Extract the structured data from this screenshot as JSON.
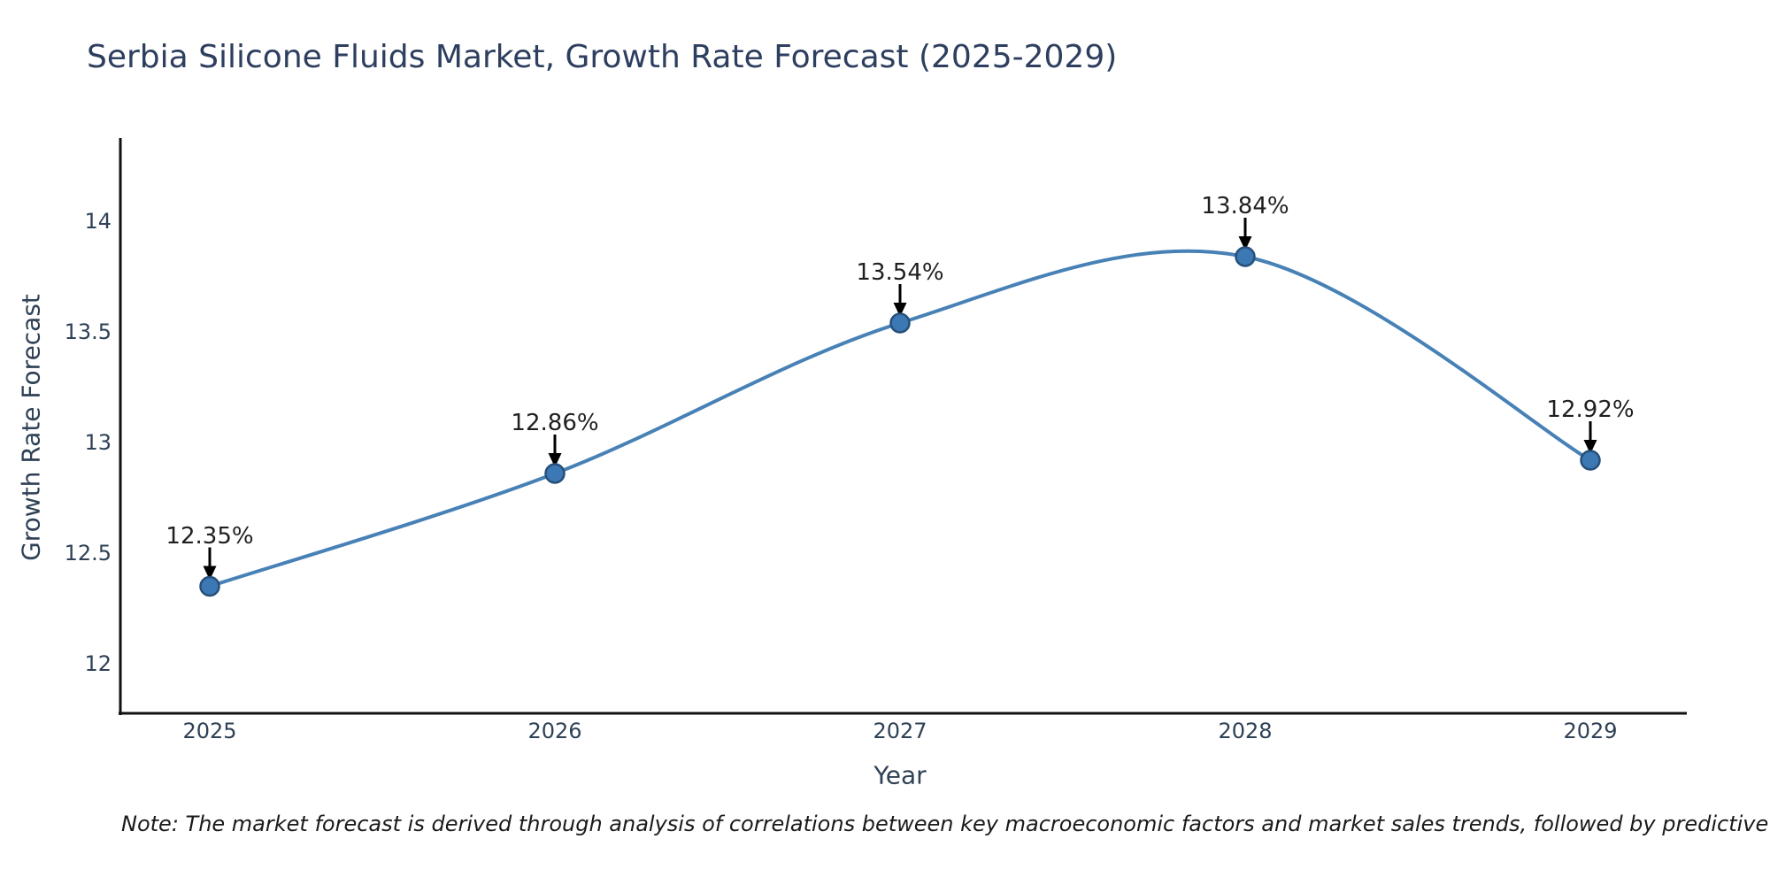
{
  "title": "Serbia Silicone Fluids Market, Growth Rate Forecast (2025-2029)",
  "note": "Note: The market forecast is derived through analysis of correlations between key macroeconomic factors and market sales trends, followed by predictive modeling to project future sal",
  "colors": {
    "background": "#ffffff",
    "title_text": "#2d3e5f",
    "axis_text": "#2f4156",
    "annotation_text": "#1f1f1f",
    "note_text": "#1a1a1a",
    "spine": "#111111",
    "line": "#4781b6",
    "marker_fill": "#3c78b4",
    "marker_edge": "#274f79",
    "arrow": "#000000"
  },
  "chart_data": {
    "type": "line",
    "title": "Serbia Silicone Fluids Market, Growth Rate Forecast (2025-2029)",
    "x": [
      2025,
      2026,
      2027,
      2028,
      2029
    ],
    "categories": [
      "2025",
      "2026",
      "2027",
      "2028",
      "2029"
    ],
    "series": [
      {
        "name": "Growth Rate Forecast",
        "values": [
          12.35,
          12.86,
          13.54,
          13.84,
          12.92
        ]
      }
    ],
    "point_labels": [
      "12.35%",
      "12.86%",
      "13.54%",
      "13.84%",
      "12.92%"
    ],
    "xlabel": "Year",
    "ylabel": "Growth Rate Forecast",
    "yticks": [
      12,
      12.5,
      13,
      13.5,
      14
    ],
    "ytick_labels": [
      "12",
      "12.5",
      "13",
      "13.5",
      "14"
    ],
    "ylim": [
      11.8,
      14.4
    ],
    "grid": false,
    "legend": "none",
    "marker": "circle",
    "line_shape": "spline",
    "annotations": "value labels with downward arrows above each point"
  }
}
